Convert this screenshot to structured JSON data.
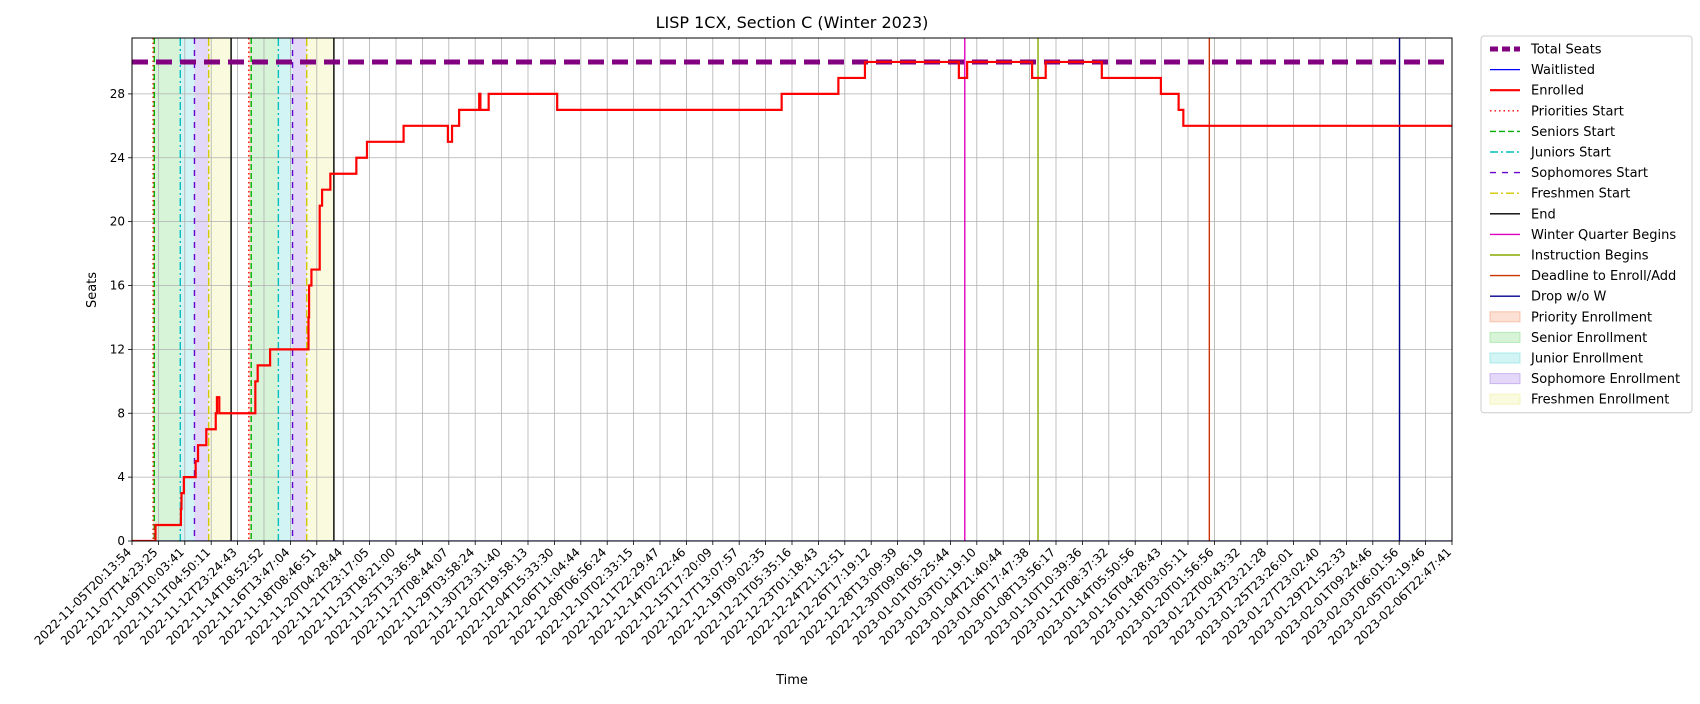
{
  "chart_data": {
    "type": "line",
    "title": "LISP 1CX, Section C (Winter 2023)",
    "xlabel": "Time",
    "ylabel": "Seats",
    "ylim": [
      0,
      31.5
    ],
    "yticks": [
      0,
      4,
      8,
      12,
      16,
      20,
      24,
      28
    ],
    "grid": true,
    "legend_position": "outside-right",
    "xlim": [
      "2022-11-05T20:13:54",
      "2023-02-06T22:47:41"
    ],
    "x_tick_labels": [
      "2022-11-05T20:13:54",
      "2022-11-07T14:23:25",
      "2022-11-09T10:03:41",
      "2022-11-11T04:50:11",
      "2022-11-12T23:24:43",
      "2022-11-14T18:52:52",
      "2022-11-16T13:47:04",
      "2022-11-18T08:46:51",
      "2022-11-20T04:28:44",
      "2022-11-21T23:17:05",
      "2022-11-23T18:21:00",
      "2022-11-25T13:36:54",
      "2022-11-27T08:44:07",
      "2022-11-29T03:58:24",
      "2022-11-30T23:31:40",
      "2022-12-02T19:58:13",
      "2022-12-04T15:33:30",
      "2022-12-06T11:04:44",
      "2022-12-08T06:56:24",
      "2022-12-10T02:33:15",
      "2022-12-11T22:29:47",
      "2022-12-14T02:22:46",
      "2022-12-15T17:20:09",
      "2022-12-17T13:07:57",
      "2022-12-19T09:02:35",
      "2022-12-21T05:35:16",
      "2022-12-23T01:18:43",
      "2022-12-24T21:12:51",
      "2022-12-26T17:19:12",
      "2022-12-28T13:09:39",
      "2022-12-30T09:06:19",
      "2023-01-01T05:25:44",
      "2023-01-03T01:19:10",
      "2023-01-04T21:40:44",
      "2023-01-06T17:47:38",
      "2023-01-08T13:56:17",
      "2023-01-10T10:39:36",
      "2023-01-12T08:37:32",
      "2023-01-14T05:50:56",
      "2023-01-16T04:28:43",
      "2023-01-18T03:05:11",
      "2023-01-20T01:56:56",
      "2023-01-22T00:43:32",
      "2023-01-23T23:21:28",
      "2023-01-25T23:26:01",
      "2023-01-27T23:02:40",
      "2023-01-29T21:52:33",
      "2023-02-01T09:24:46",
      "2023-02-03T06:01:56",
      "2023-02-05T02:19:46",
      "2023-02-06T22:47:41"
    ],
    "series": [
      {
        "name": "Total Seats",
        "color": "#800080",
        "style": "dashed-thick",
        "points": [
          [
            "2022-11-05T20:13:54",
            30
          ],
          [
            "2023-02-06T22:47:41",
            30
          ]
        ]
      },
      {
        "name": "Waitlisted",
        "color": "#0000ff",
        "style": "solid-thin",
        "points": [
          [
            "2022-11-05T20:13:54",
            0
          ],
          [
            "2023-02-06T22:47:41",
            0
          ]
        ]
      },
      {
        "name": "Enrolled",
        "color": "#ff0000",
        "style": "step",
        "points": [
          [
            "2022-11-05T20:13:54",
            0
          ],
          [
            "2022-11-07T10:00:00",
            0
          ],
          [
            "2022-11-07T12:00:00",
            1
          ],
          [
            "2022-11-09T06:00:00",
            1
          ],
          [
            "2022-11-09T07:00:00",
            2
          ],
          [
            "2022-11-09T08:00:00",
            3
          ],
          [
            "2022-11-09T12:00:00",
            4
          ],
          [
            "2022-11-10T08:00:00",
            5
          ],
          [
            "2022-11-10T12:00:00",
            6
          ],
          [
            "2022-11-11T02:00:00",
            7
          ],
          [
            "2022-11-11T18:00:00",
            8
          ],
          [
            "2022-11-11T20:00:00",
            9
          ],
          [
            "2022-11-12T00:00:00",
            8
          ],
          [
            "2022-11-14T11:00:00",
            8
          ],
          [
            "2022-11-14T13:00:00",
            10
          ],
          [
            "2022-11-14T17:00:00",
            11
          ],
          [
            "2022-11-15T14:00:00",
            12
          ],
          [
            "2022-11-18T06:00:00",
            12
          ],
          [
            "2022-11-18T07:00:00",
            14
          ],
          [
            "2022-11-18T08:00:00",
            16
          ],
          [
            "2022-11-18T12:00:00",
            17
          ],
          [
            "2022-11-19T02:00:00",
            21
          ],
          [
            "2022-11-19T06:00:00",
            22
          ],
          [
            "2022-11-19T20:00:00",
            23
          ],
          [
            "2022-11-21T16:00:00",
            24
          ],
          [
            "2022-11-22T10:00:00",
            25
          ],
          [
            "2022-11-25T00:00:00",
            26
          ],
          [
            "2022-11-28T03:00:00",
            25
          ],
          [
            "2022-11-28T10:00:00",
            26
          ],
          [
            "2022-11-28T22:00:00",
            27
          ],
          [
            "2022-11-30T08:00:00",
            28
          ],
          [
            "2022-11-30T10:00:00",
            27
          ],
          [
            "2022-12-01T00:00:00",
            28
          ],
          [
            "2022-12-05T20:00:00",
            27
          ],
          [
            "2022-12-21T16:00:00",
            28
          ],
          [
            "2022-12-25T16:00:00",
            29
          ],
          [
            "2022-12-27T13:00:00",
            30
          ],
          [
            "2023-01-03T04:00:00",
            29
          ],
          [
            "2023-01-03T18:00:00",
            30
          ],
          [
            "2023-01-08T08:00:00",
            29
          ],
          [
            "2023-01-09T07:00:00",
            30
          ],
          [
            "2023-01-13T06:00:00",
            29
          ],
          [
            "2023-01-17T10:00:00",
            28
          ],
          [
            "2023-01-18T16:00:00",
            27
          ],
          [
            "2023-01-19T00:00:00",
            26
          ],
          [
            "2023-02-06T22:47:41",
            26
          ]
        ]
      }
    ],
    "vertical_lines": [
      {
        "name": "Priorities Start",
        "color": "#ff0000",
        "style": "dotted",
        "x": [
          "2022-11-07T08:00:00",
          "2022-11-14T02:00:00"
        ]
      },
      {
        "name": "Seniors Start",
        "color": "#00b000",
        "style": "dashed",
        "x": [
          "2022-11-07T10:00:00",
          "2022-11-14T06:00:00"
        ]
      },
      {
        "name": "Juniors Start",
        "color": "#00bfbf",
        "style": "dashdot",
        "x": [
          "2022-11-09T06:00:00",
          "2022-11-16T04:00:00"
        ]
      },
      {
        "name": "Sophomores Start",
        "color": "#6600cc",
        "style": "loosedash",
        "x": [
          "2022-11-10T06:00:00",
          "2022-11-17T04:00:00"
        ]
      },
      {
        "name": "Freshmen Start",
        "color": "#d4c800",
        "style": "dashdot",
        "x": [
          "2022-11-11T06:00:00",
          "2022-11-18T04:00:00"
        ]
      },
      {
        "name": "End",
        "color": "#000000",
        "style": "solid",
        "x": [
          "2022-11-12T20:00:00",
          "2022-11-20T02:00:00"
        ]
      },
      {
        "name": "Winter Quarter Begins",
        "color": "#e000c0",
        "style": "solid",
        "x": [
          "2023-01-03T14:00:00"
        ]
      },
      {
        "name": "Instruction Begins",
        "color": "#88aa00",
        "style": "solid",
        "x": [
          "2023-01-08T18:00:00"
        ]
      },
      {
        "name": "Deadline to Enroll/Add",
        "color": "#cc3300",
        "style": "solid",
        "x": [
          "2023-01-20T20:00:00"
        ]
      },
      {
        "name": "Drop w/o W",
        "color": "#00008b",
        "style": "solid",
        "x": [
          "2023-02-03T06:00:00"
        ]
      }
    ],
    "bands": [
      {
        "name": "Priority Enrollment",
        "color": "#f4a582",
        "ranges": [
          [
            "2022-11-07T08:00:00",
            "2022-11-07T10:00:00"
          ],
          [
            "2022-11-14T02:00:00",
            "2022-11-14T06:00:00"
          ]
        ]
      },
      {
        "name": "Senior Enrollment",
        "color": "#90e090",
        "ranges": [
          [
            "2022-11-07T10:00:00",
            "2022-11-09T06:00:00"
          ],
          [
            "2022-11-14T06:00:00",
            "2022-11-16T04:00:00"
          ]
        ]
      },
      {
        "name": "Junior Enrollment",
        "color": "#80e0e0",
        "ranges": [
          [
            "2022-11-09T06:00:00",
            "2022-11-10T06:00:00"
          ],
          [
            "2022-11-16T04:00:00",
            "2022-11-17T04:00:00"
          ]
        ]
      },
      {
        "name": "Sophomore Enrollment",
        "color": "#b090e8",
        "ranges": [
          [
            "2022-11-10T06:00:00",
            "2022-11-11T06:00:00"
          ],
          [
            "2022-11-17T04:00:00",
            "2022-11-18T04:00:00"
          ]
        ]
      },
      {
        "name": "Freshmen Enrollment",
        "color": "#f0f0a0",
        "ranges": [
          [
            "2022-11-11T06:00:00",
            "2022-11-12T20:00:00"
          ],
          [
            "2022-11-18T04:00:00",
            "2022-11-20T02:00:00"
          ]
        ]
      }
    ],
    "legend": [
      "Total Seats",
      "Waitlisted",
      "Enrolled",
      "Priorities Start",
      "Seniors Start",
      "Juniors Start",
      "Sophomores Start",
      "Freshmen Start",
      "End",
      "Winter Quarter Begins",
      "Instruction Begins",
      "Deadline to Enroll/Add",
      "Drop w/o W",
      "Priority Enrollment",
      "Senior Enrollment",
      "Junior Enrollment",
      "Sophomore Enrollment",
      "Freshmen Enrollment"
    ]
  }
}
